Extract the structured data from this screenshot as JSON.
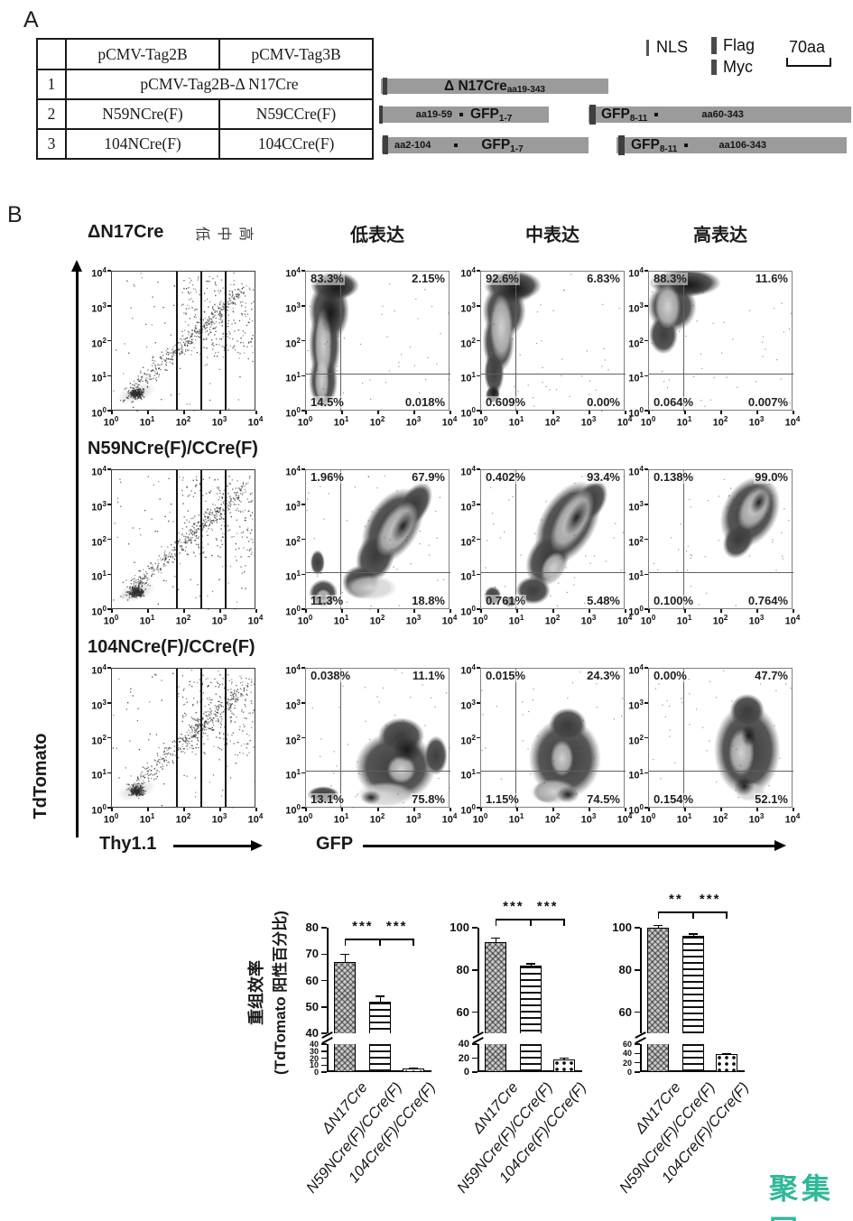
{
  "watermark": "聚集网",
  "watermark_color": "#2FB89A",
  "panel_a": {
    "label": "A",
    "table": {
      "col_headers": [
        "pCMV-Tag2B",
        "pCMV-Tag3B"
      ],
      "row1": {
        "num": "1",
        "merged": "pCMV-Tag2B-Δ N17Cre"
      },
      "row2": {
        "num": "2",
        "c1": "N59NCre(F)",
        "c2": "N59CCre(F)"
      },
      "row3": {
        "num": "3",
        "c1": "104NCre(F)",
        "c2": "104CCre(F)"
      }
    },
    "legend": {
      "nls": "NLS",
      "flag": "Flag",
      "myc": "Myc",
      "scale": "70aa"
    },
    "constructs": {
      "row1_label": "Δ N17Cre",
      "row1_sub": "aa19-343",
      "row2_left_pre": "aa19-59",
      "row2_left_main": "GFP",
      "row2_left_sub": "1-7",
      "row2_right_main": "GFP",
      "row2_right_sub": "8-11",
      "row2_right_post": "aa60-343",
      "row3_left_pre": "aa2-104",
      "row3_left_main": "GFP",
      "row3_left_sub": "1-7",
      "row3_right_main": "GFP",
      "row3_right_sub": "8-11",
      "row3_right_post": "aa106-343"
    }
  },
  "panel_b": {
    "label": "B",
    "row_labels": [
      "ΔN17Cre",
      "N59NCre(F)/CCre(F)",
      "104NCre(F)/CCre(F)"
    ],
    "gate_chars": [
      "低",
      "中",
      "高"
    ],
    "col_headers": [
      "低表达",
      "中表达",
      "高表达"
    ],
    "y_axis_label": "TdTomato",
    "x_axis_label_scatter": "Thy1.1",
    "x_axis_label_density": "GFP",
    "tick_exponents": [
      0,
      1,
      2,
      3,
      4
    ],
    "quadrant_values": [
      [
        [
          "83.3%",
          "2.15%",
          "14.5%",
          "0.018%"
        ],
        [
          "92.6%",
          "6.83%",
          "0.609%",
          "0.00%"
        ],
        [
          "88.3%",
          "11.6%",
          "0.064%",
          "0.007%"
        ]
      ],
      [
        [
          "1.96%",
          "67.9%",
          "11.3%",
          "18.8%"
        ],
        [
          "0.402%",
          "93.4%",
          "0.761%",
          "5.48%"
        ],
        [
          "0.138%",
          "99.0%",
          "0.100%",
          "0.764%"
        ]
      ],
      [
        [
          "0.038%",
          "11.1%",
          "13.1%",
          "75.8%"
        ],
        [
          "0.015%",
          "24.3%",
          "1.15%",
          "74.5%"
        ],
        [
          "0.00%",
          "47.7%",
          "0.154%",
          "52.1%"
        ]
      ]
    ]
  },
  "chart_data": [
    {
      "type": "bar",
      "ylabel_line1": "重组效率",
      "ylabel_line2": "(TdTomato 阳性百分比)",
      "categories": [
        "ΔN17Cre",
        "N59NCre(F)/CCre(F)",
        "104Cre(F)/CCre(F)"
      ],
      "values": [
        67,
        52,
        5
      ],
      "errors": [
        3,
        2,
        1
      ],
      "axis_break": true,
      "upper_range": [
        40,
        80
      ],
      "upper_ticks": [
        40,
        50,
        60,
        70,
        80
      ],
      "lower_range": [
        0,
        40
      ],
      "lower_ticks": [
        0,
        10,
        20,
        30,
        40
      ],
      "significance": [
        "***",
        "***"
      ]
    },
    {
      "type": "bar",
      "categories": [
        "ΔN17Cre",
        "N59NCre(F)/CCre(F)",
        "104Cre(F)/CCre(F)"
      ],
      "values": [
        93,
        82,
        18
      ],
      "errors": [
        2,
        1,
        2
      ],
      "axis_break": true,
      "upper_range": [
        50,
        100
      ],
      "upper_ticks": [
        60,
        80,
        100
      ],
      "lower_range": [
        0,
        40
      ],
      "lower_ticks": [
        0,
        20,
        40
      ],
      "significance": [
        "***",
        "***"
      ]
    },
    {
      "type": "bar",
      "categories": [
        "ΔN17Cre",
        "N59NCre(F)/CCre(F)",
        "104Cre(F)/CCre(F)"
      ],
      "values": [
        100,
        96,
        38
      ],
      "errors": [
        1,
        1,
        2
      ],
      "axis_break": true,
      "upper_range": [
        50,
        100
      ],
      "upper_ticks": [
        60,
        80,
        100
      ],
      "lower_range": [
        0,
        60
      ],
      "lower_ticks": [
        0,
        20,
        40,
        60
      ],
      "significance": [
        "**",
        "***"
      ]
    }
  ]
}
